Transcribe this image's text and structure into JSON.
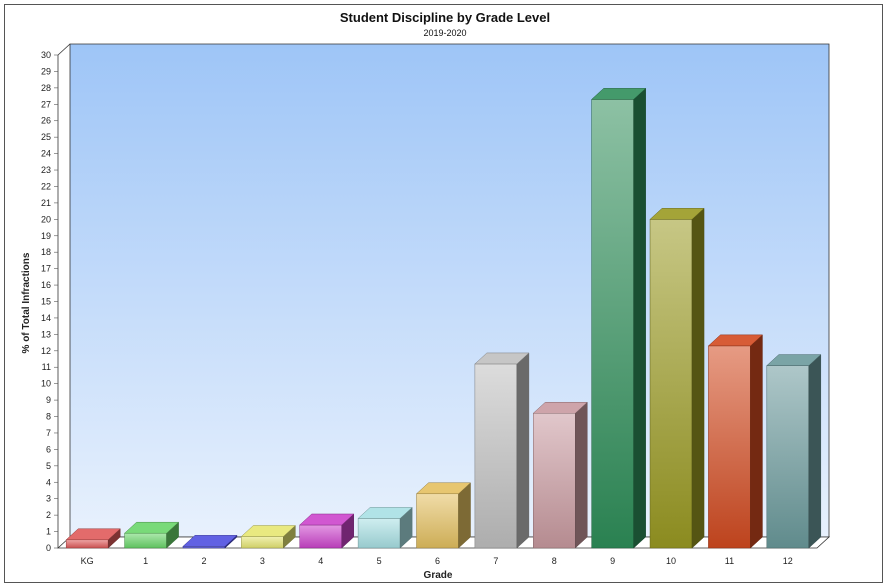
{
  "chart_data": {
    "type": "bar",
    "title": "Student Discipline by Grade Level",
    "subtitle": "2019-2020",
    "xlabel": "Grade",
    "ylabel": "% of Total Infractions",
    "ylim": [
      0,
      30
    ],
    "yticks": [
      0,
      1,
      2,
      3,
      4,
      5,
      6,
      7,
      8,
      9,
      10,
      11,
      12,
      13,
      14,
      15,
      16,
      17,
      18,
      19,
      20,
      21,
      22,
      23,
      24,
      25,
      26,
      27,
      28,
      29,
      30
    ],
    "grid": false,
    "three_d": true,
    "categories": [
      "KG",
      "1",
      "2",
      "3",
      "4",
      "5",
      "6",
      "7",
      "8",
      "9",
      "10",
      "11",
      "12"
    ],
    "values": [
      0.5,
      0.9,
      0.1,
      0.7,
      1.4,
      1.8,
      3.3,
      11.2,
      8.2,
      27.3,
      20.0,
      12.3,
      11.1
    ],
    "colors": [
      "#e05a5a",
      "#6ad66a",
      "#4f4fe0",
      "#e6e672",
      "#cc44cc",
      "#a8e0e4",
      "#e4c060",
      "#c0c0c0",
      "#c99aa0",
      "#2f8f5a",
      "#9a9a22",
      "#d24a20",
      "#6b9a9c"
    ],
    "background": [
      "#9ec5f7",
      "#e8f1fd"
    ]
  }
}
